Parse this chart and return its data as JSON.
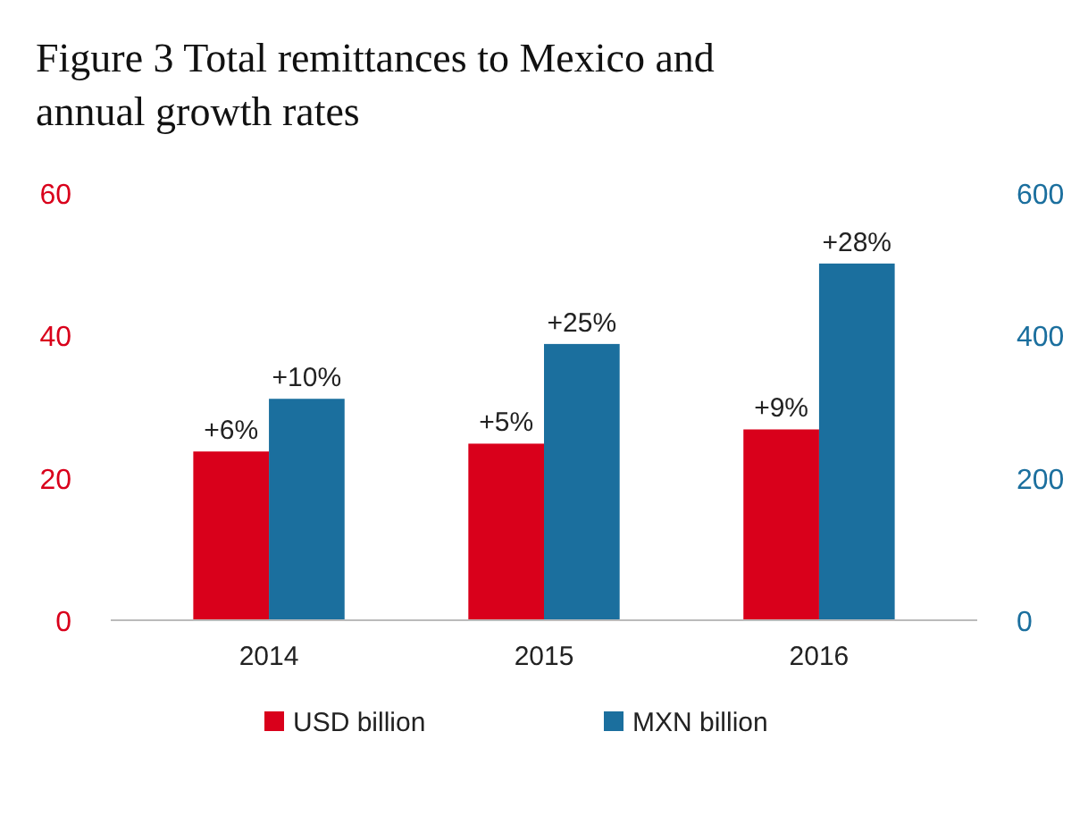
{
  "chart_data": {
    "type": "bar",
    "title": "Figure 3 Total remittances to Mexico and annual growth rates",
    "categories": [
      "2014",
      "2015",
      "2016"
    ],
    "series": [
      {
        "name": "USD billion",
        "color": "#d9001b",
        "values": [
          23.7,
          24.8,
          26.8
        ]
      },
      {
        "name": "MXN billion",
        "color": "#1b6f9e",
        "values": [
          311,
          388,
          501
        ],
        "axis": "y2"
      }
    ],
    "annotations": [
      {
        "text": "+6%",
        "x": "2014",
        "y": 23.7
      },
      {
        "text": "+5%",
        "x": "2015",
        "y": 24.8
      },
      {
        "text": "+9%",
        "x": "2016",
        "y": 26.8
      },
      {
        "text": "+10%",
        "x": "2014",
        "y": 31.1
      },
      {
        "text": "+25%",
        "x": "2015",
        "y": 38.8
      },
      {
        "text": "+28%",
        "x": "2016",
        "y": 50.1
      }
    ],
    "ylim": [
      0,
      60
    ],
    "yticks": [
      0,
      20,
      40,
      60
    ],
    "y2lim": [
      0,
      600
    ],
    "y2ticks": [
      0,
      200,
      400,
      600
    ],
    "legend": "bottom",
    "grid": false
  }
}
